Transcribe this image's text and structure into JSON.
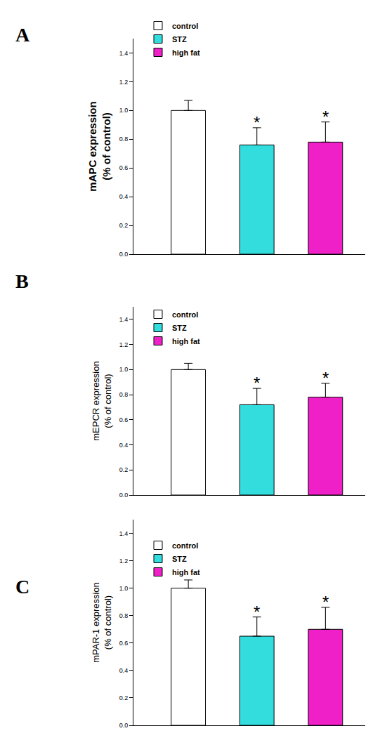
{
  "chart_data": [
    {
      "type": "bar",
      "title": "A",
      "ylabel": [
        "mAPC expression",
        "(% of control)"
      ],
      "series": [
        {
          "name": "control",
          "color": "#ffffff",
          "values": [
            1.0
          ],
          "errors": [
            0.07
          ]
        },
        {
          "name": "STZ",
          "color": "#33dddd",
          "values": [
            0.76
          ],
          "errors": [
            0.12
          ],
          "annotation": "*"
        },
        {
          "name": "high fat",
          "color": "#f020c8",
          "values": [
            0.78
          ],
          "errors": [
            0.14
          ],
          "annotation": "*"
        }
      ],
      "ylim": [
        0,
        1.5
      ],
      "yticks": [
        {
          "value": 0,
          "label": "0.0"
        },
        {
          "value": 0.2,
          "label": "0.2"
        },
        {
          "value": 0.4,
          "label": "0.4"
        },
        {
          "value": 0.6,
          "label": "0.6"
        },
        {
          "value": 0.8,
          "label": "0.8"
        },
        {
          "value": 1.0,
          "label": "1.0"
        },
        {
          "value": 1.2,
          "label": "1.2"
        },
        {
          "value": 1.4,
          "label": "1.4"
        }
      ],
      "grid": false,
      "legend": "upper left",
      "tick_labels": "y"
    },
    {
      "type": "bar",
      "title": "B",
      "ylabel": [
        "mEPCR expression",
        "(% of control)"
      ],
      "series": [
        {
          "name": "control",
          "color": "#ffffff",
          "values": [
            1.0
          ],
          "errors": [
            0.05
          ]
        },
        {
          "name": "STZ",
          "color": "#33dddd",
          "values": [
            0.72
          ],
          "errors": [
            0.13
          ],
          "annotation": "*"
        },
        {
          "name": "high fat",
          "color": "#f020c8",
          "values": [
            0.78
          ],
          "errors": [
            0.11
          ],
          "annotation": "*"
        }
      ],
      "ylim": [
        0,
        1.5
      ],
      "yticks": [
        {
          "value": 0,
          "label": "0.0"
        },
        {
          "value": 0.2,
          "label": "0.2"
        },
        {
          "value": 0.4,
          "label": "0.4"
        },
        {
          "value": 0.6,
          "label": "0.6"
        },
        {
          "value": 0.8,
          "label": "0.8"
        },
        {
          "value": 1.0,
          "label": "1.0"
        },
        {
          "value": 1.2,
          "label": "1.2"
        },
        {
          "value": 1.4,
          "label": "1.4"
        }
      ],
      "grid": false,
      "legend": "upper left",
      "tick_labels": "y"
    },
    {
      "type": "bar",
      "title": "C",
      "ylabel": [
        "mPAR-1 expression",
        "(% of control)"
      ],
      "series": [
        {
          "name": "control",
          "color": "#ffffff",
          "values": [
            1.0
          ],
          "errors": [
            0.06
          ]
        },
        {
          "name": "STZ",
          "color": "#33dddd",
          "values": [
            0.65
          ],
          "errors": [
            0.14
          ],
          "annotation": "*"
        },
        {
          "name": "high fat",
          "color": "#f020c8",
          "values": [
            0.7
          ],
          "errors": [
            0.16
          ],
          "annotation": "*"
        }
      ],
      "ylim": [
        0,
        1.5
      ],
      "yticks": [
        {
          "value": 0,
          "label": "0.0"
        },
        {
          "value": 0.2,
          "label": "0.2"
        },
        {
          "value": 0.4,
          "label": "0.4"
        },
        {
          "value": 0.6,
          "label": "0.6"
        },
        {
          "value": 0.8,
          "label": "0.8"
        },
        {
          "value": 1.0,
          "label": "1.0"
        },
        {
          "value": 1.2,
          "label": "1.2"
        },
        {
          "value": 1.4,
          "label": "1.4"
        }
      ],
      "grid": false,
      "legend": "upper left",
      "tick_labels": "y"
    }
  ]
}
